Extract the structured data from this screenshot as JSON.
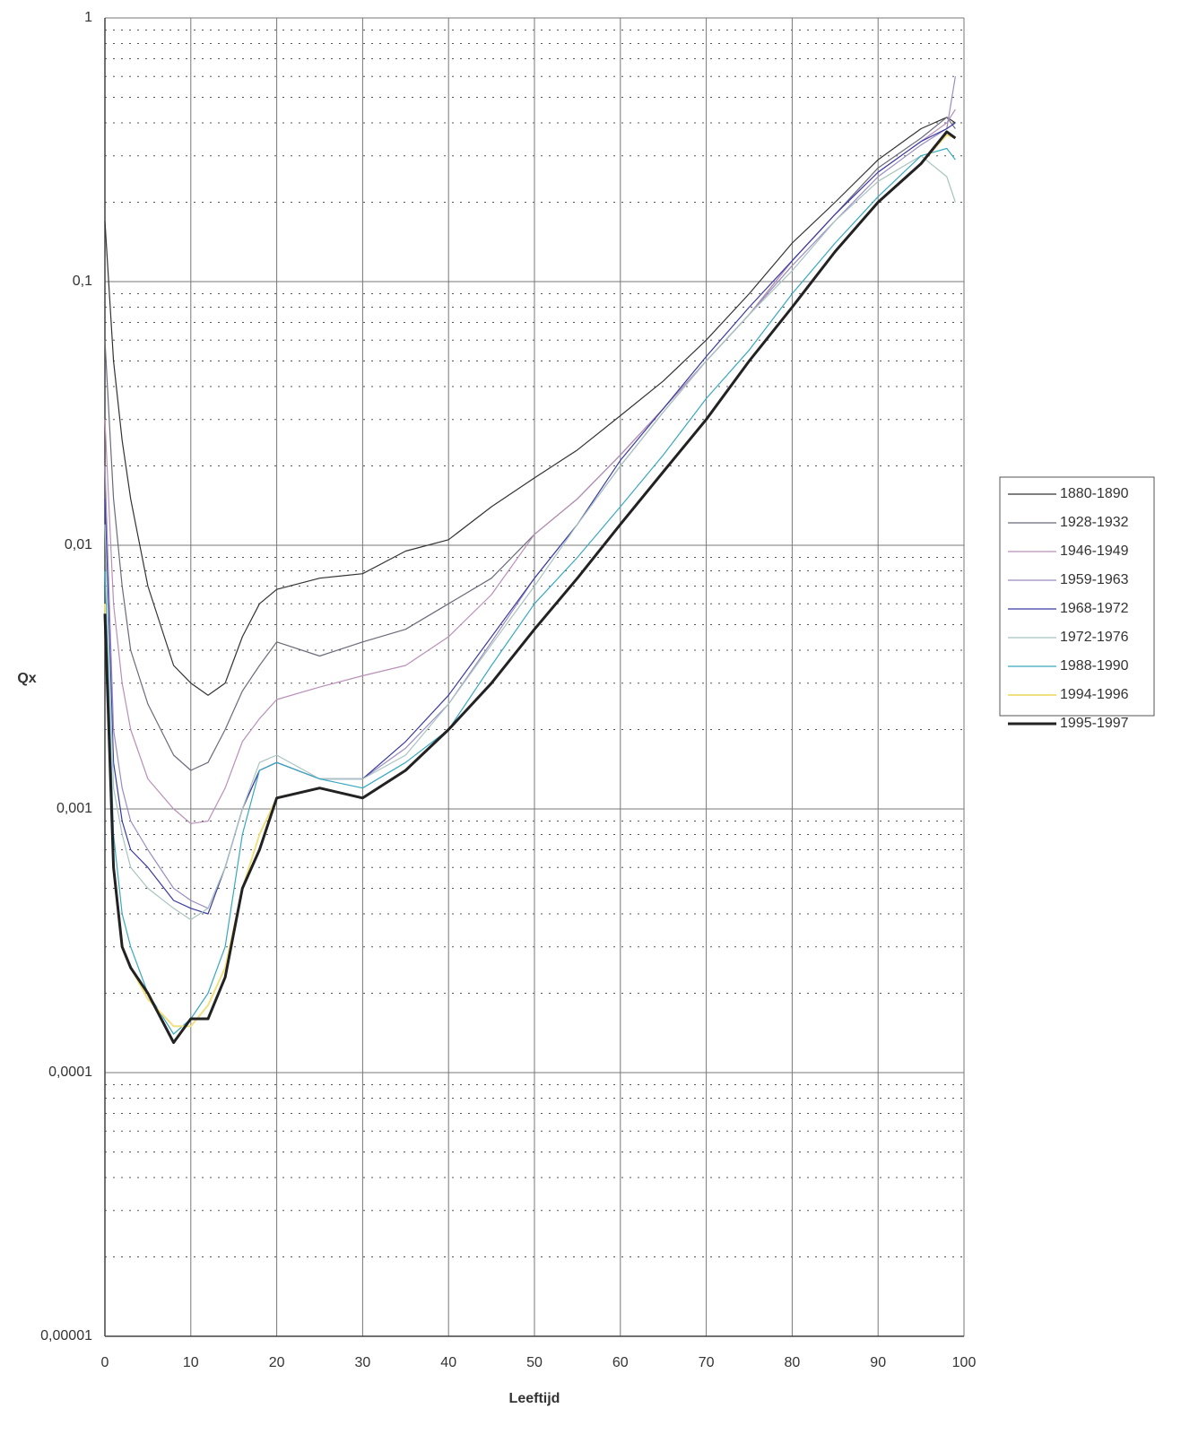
{
  "chart_data": {
    "type": "line",
    "log_y": true,
    "grid": true,
    "x_label": "Leeftijd",
    "y_label": "Qx",
    "xlim": [
      0,
      100
    ],
    "xticks": [
      0,
      10,
      20,
      30,
      40,
      50,
      60,
      70,
      80,
      90,
      100
    ],
    "ylim": [
      1e-05,
      1
    ],
    "yticks": [
      {
        "value": 1e-05,
        "label": "0,00001"
      },
      {
        "value": 0.0001,
        "label": "0,0001"
      },
      {
        "value": 0.001,
        "label": "0,001"
      },
      {
        "value": 0.01,
        "label": "0,01"
      },
      {
        "value": 0.1,
        "label": "0,1"
      },
      1
    ],
    "yticks_minor": [
      2e-05,
      3e-05,
      4e-05,
      5e-05,
      6e-05,
      7e-05,
      8e-05,
      9e-05,
      0.0002,
      0.0003,
      0.0004,
      0.0005,
      0.0006,
      0.0007,
      0.0008,
      0.0009,
      0.002,
      0.003,
      0.004,
      0.005,
      0.006,
      0.007,
      0.008,
      0.009,
      0.02,
      0.03,
      0.04,
      0.05,
      0.06,
      0.07,
      0.08,
      0.09,
      0.2,
      0.3,
      0.4,
      0.5,
      0.6,
      0.7,
      0.8,
      0.9
    ],
    "x": [
      0,
      1,
      2,
      3,
      5,
      8,
      10,
      12,
      14,
      16,
      18,
      20,
      25,
      30,
      35,
      40,
      45,
      50,
      55,
      60,
      65,
      70,
      75,
      80,
      85,
      90,
      95,
      98,
      99
    ],
    "series": [
      {
        "name": "1880-1890",
        "color": "#333333",
        "width": 1.2,
        "values": [
          0.17,
          0.05,
          0.025,
          0.015,
          0.007,
          0.0035,
          0.003,
          0.0027,
          0.003,
          0.0045,
          0.006,
          0.0068,
          0.0075,
          0.0078,
          0.0095,
          0.0105,
          0.014,
          0.018,
          0.023,
          0.031,
          0.042,
          0.06,
          0.09,
          0.14,
          0.2,
          0.29,
          0.38,
          0.42,
          0.4
        ]
      },
      {
        "name": "1928-1932",
        "color": "#6a6a7a",
        "width": 1.2,
        "values": [
          0.06,
          0.015,
          0.007,
          0.004,
          0.0025,
          0.0016,
          0.0014,
          0.0015,
          0.002,
          0.0028,
          0.0035,
          0.0043,
          0.0038,
          0.0043,
          0.0048,
          0.006,
          0.0075,
          0.011,
          0.015,
          0.022,
          0.033,
          0.05,
          0.075,
          0.12,
          0.18,
          0.27,
          0.35,
          0.42,
          0.38
        ]
      },
      {
        "name": "1946-1949",
        "color": "#b890b8",
        "width": 1.2,
        "values": [
          0.03,
          0.006,
          0.003,
          0.002,
          0.0013,
          0.001,
          0.00088,
          0.0009,
          0.0012,
          0.0018,
          0.0022,
          0.0026,
          0.0029,
          0.0032,
          0.0035,
          0.0045,
          0.0065,
          0.011,
          0.015,
          0.022,
          0.033,
          0.05,
          0.075,
          0.12,
          0.18,
          0.26,
          0.34,
          0.4,
          0.45
        ]
      },
      {
        "name": "1959-1963",
        "color": "#9a8cc0",
        "width": 1.2,
        "values": [
          0.02,
          0.002,
          0.0012,
          0.0009,
          0.0007,
          0.0005,
          0.00045,
          0.00042,
          0.0006,
          0.001,
          0.0014,
          0.0015,
          0.0013,
          0.0013,
          0.0017,
          0.0025,
          0.0043,
          0.0075,
          0.012,
          0.02,
          0.032,
          0.05,
          0.075,
          0.115,
          0.17,
          0.25,
          0.33,
          0.38,
          0.6
        ]
      },
      {
        "name": "1968-1972",
        "color": "#3a3aa0",
        "width": 1.2,
        "values": [
          0.015,
          0.0015,
          0.0009,
          0.0007,
          0.0006,
          0.00045,
          0.00042,
          0.0004,
          0.0006,
          0.001,
          0.0014,
          0.0015,
          0.0013,
          0.0013,
          0.0018,
          0.0027,
          0.0045,
          0.0075,
          0.012,
          0.021,
          0.033,
          0.052,
          0.08,
          0.12,
          0.18,
          0.26,
          0.34,
          0.38,
          0.4
        ]
      },
      {
        "name": "1972-1976",
        "color": "#a8c4c0",
        "width": 1.2,
        "values": [
          0.012,
          0.0012,
          0.0008,
          0.0006,
          0.0005,
          0.00042,
          0.00038,
          0.00042,
          0.0006,
          0.001,
          0.0015,
          0.0016,
          0.0013,
          0.0013,
          0.0016,
          0.0025,
          0.0042,
          0.007,
          0.012,
          0.02,
          0.032,
          0.05,
          0.075,
          0.11,
          0.17,
          0.24,
          0.3,
          0.25,
          0.2
        ]
      },
      {
        "name": "1988-1990",
        "color": "#3aa8c0",
        "width": 1.2,
        "values": [
          0.008,
          0.0008,
          0.0004,
          0.0003,
          0.0002,
          0.00014,
          0.00016,
          0.0002,
          0.0003,
          0.0008,
          0.0014,
          0.0015,
          0.0013,
          0.0012,
          0.0015,
          0.002,
          0.0035,
          0.006,
          0.009,
          0.014,
          0.022,
          0.036,
          0.055,
          0.09,
          0.14,
          0.21,
          0.3,
          0.32,
          0.29
        ]
      },
      {
        "name": "1994-1996",
        "color": "#f0e080",
        "width": 2,
        "values": [
          0.006,
          0.0006,
          0.0003,
          0.00025,
          0.00019,
          0.00015,
          0.00015,
          0.00018,
          0.00025,
          0.0005,
          0.0008,
          0.0011,
          0.0012,
          0.0011,
          0.0014,
          0.002,
          0.003,
          0.0048,
          0.0075,
          0.012,
          0.019,
          0.03,
          0.05,
          0.08,
          0.13,
          0.2,
          0.28,
          0.36,
          0.35
        ]
      },
      {
        "name": "1995-1997",
        "color": "#222222",
        "width": 3,
        "values": [
          0.0055,
          0.0006,
          0.0003,
          0.00025,
          0.0002,
          0.00013,
          0.00016,
          0.00016,
          0.00023,
          0.0005,
          0.0007,
          0.0011,
          0.0012,
          0.0011,
          0.0014,
          0.002,
          0.003,
          0.0048,
          0.0075,
          0.012,
          0.019,
          0.03,
          0.05,
          0.08,
          0.13,
          0.2,
          0.28,
          0.37,
          0.35
        ]
      }
    ]
  }
}
